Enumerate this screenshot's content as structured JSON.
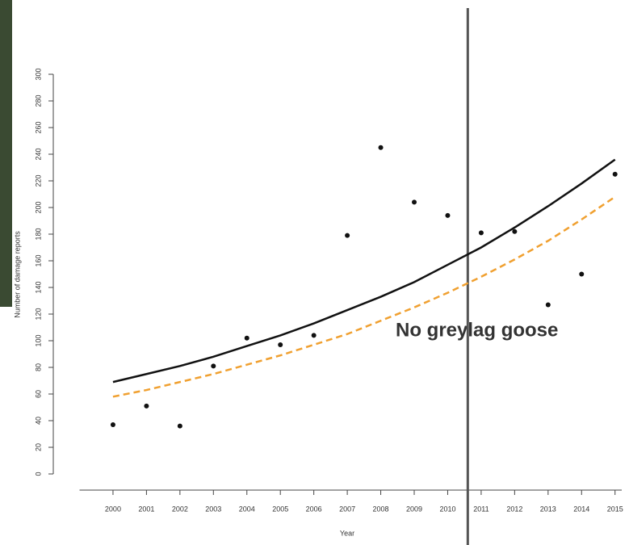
{
  "chart_data": {
    "type": "scatter",
    "xlabel": "Year",
    "ylabel": "Number of damage reports",
    "x": [
      2000,
      2001,
      2002,
      2003,
      2004,
      2005,
      2006,
      2007,
      2008,
      2009,
      2010,
      2011,
      2012,
      2013,
      2014,
      2015
    ],
    "series": [
      {
        "style": "points",
        "color": "#111111",
        "values": [
          37,
          51,
          36,
          81,
          102,
          97,
          104,
          179,
          245,
          204,
          194,
          181,
          182,
          127,
          150,
          225
        ]
      },
      {
        "style": "line",
        "color": "#111111",
        "values": [
          69,
          75,
          81,
          88,
          96,
          104,
          113,
          123,
          133,
          144,
          157,
          170,
          185,
          201,
          218,
          236
        ]
      },
      {
        "style": "dashed",
        "color": "#f0a030",
        "values": [
          58,
          63,
          69,
          75,
          82,
          89,
          97,
          105,
          115,
          125,
          136,
          148,
          161,
          175,
          191,
          208
        ]
      }
    ],
    "vline": 2010.6,
    "annotation": {
      "text": "No greylag goose",
      "color": "#e8772e"
    },
    "xlim": [
      1999,
      2015.2
    ],
    "xticks": [
      2000,
      2001,
      2002,
      2003,
      2004,
      2005,
      2006,
      2007,
      2008,
      2009,
      2010,
      2011,
      2012,
      2013,
      2014,
      2015
    ],
    "ylim": [
      0,
      300
    ],
    "yticks": [
      0,
      20,
      40,
      60,
      80,
      100,
      120,
      140,
      160,
      180,
      200,
      220,
      240,
      260,
      280,
      300
    ]
  }
}
